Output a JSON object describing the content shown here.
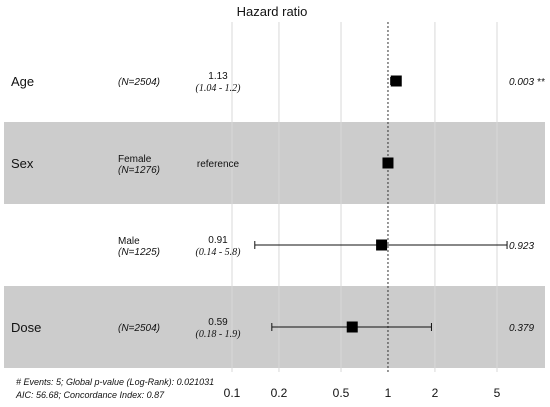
{
  "chart_data": {
    "type": "forest",
    "title": "Hazard ratio",
    "scale": "log",
    "xlim": [
      0.1,
      5
    ],
    "ticks": [
      0.1,
      0.2,
      0.5,
      1,
      2,
      5
    ],
    "tick_labels": [
      "0.1",
      "0.2",
      "0.5",
      "1",
      "2",
      "5"
    ],
    "reference_line": 1,
    "rows": [
      {
        "variable": "Age",
        "level": "",
        "n": "(N=2504)",
        "estimate_text": "1.13",
        "ci_text": "(1.04 - 1.2)",
        "hr": 1.13,
        "lower": 1.04,
        "upper": 1.2,
        "p_text": "0.003 **",
        "shaded": false
      },
      {
        "variable": "Sex",
        "level": "Female",
        "n": "(N=1276)",
        "estimate_text": "reference",
        "ci_text": "",
        "hr": 1.0,
        "lower": null,
        "upper": null,
        "p_text": "",
        "shaded": true
      },
      {
        "variable": "",
        "level": "Male",
        "n": "(N=1225)",
        "estimate_text": "0.91",
        "ci_text": "(0.14 - 5.8)",
        "hr": 0.91,
        "lower": 0.14,
        "upper": 5.8,
        "p_text": "0.923",
        "shaded": false
      },
      {
        "variable": "Dose",
        "level": "",
        "n": "(N=2504)",
        "estimate_text": "0.59",
        "ci_text": "(0.18 - 1.9)",
        "hr": 0.59,
        "lower": 0.18,
        "upper": 1.9,
        "p_text": "0.379",
        "shaded": true
      }
    ],
    "footer": [
      "# Events: 5; Global p-value (Log-Rank): 0.021031",
      "AIC: 56.68; Concordance Index: 0.87"
    ]
  }
}
